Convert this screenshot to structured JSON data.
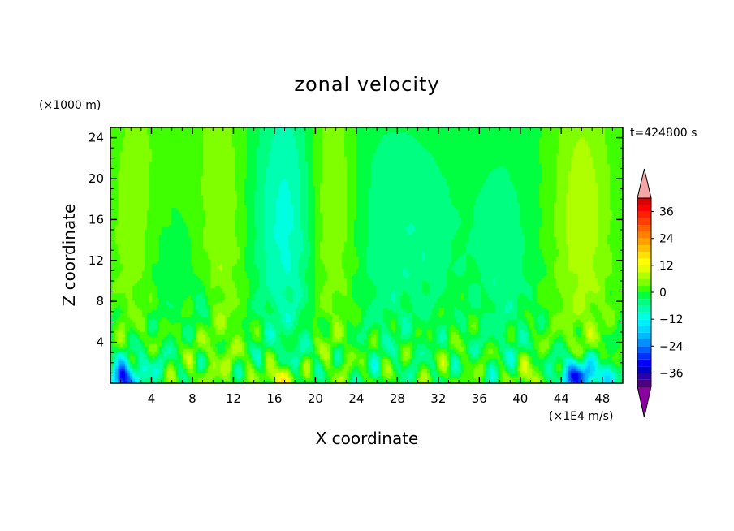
{
  "chart_data": {
    "type": "heatmap",
    "title": "zonal velocity",
    "xlabel": "X coordinate",
    "ylabel": "Z coordinate",
    "x_unit_label": "(×1E4 m/s)",
    "y_unit_label": "(×1000 m)",
    "time_label": "t=424800 s",
    "xlim": [
      0,
      50
    ],
    "ylim": [
      0,
      25
    ],
    "x_ticks": [
      4,
      8,
      12,
      16,
      20,
      24,
      28,
      32,
      36,
      40,
      44,
      48
    ],
    "y_ticks": [
      4,
      8,
      12,
      16,
      20,
      24
    ],
    "x_tick_labels": [
      "4",
      "8",
      "12",
      "16",
      "20",
      "24",
      "28",
      "32",
      "36",
      "40",
      "44",
      "48"
    ],
    "y_tick_labels": [
      "4",
      "8",
      "12",
      "16",
      "20",
      "24"
    ],
    "colorbar": {
      "levels": [
        -42,
        -39,
        -36,
        -33,
        -30,
        -27,
        -24,
        -21,
        -18,
        -15,
        -12,
        -9,
        -6,
        -3,
        0,
        3,
        6,
        9,
        12,
        15,
        18,
        21,
        24,
        27,
        30,
        33,
        36,
        39,
        42
      ],
      "tick_values": [
        36,
        24,
        12,
        0,
        -12,
        -24,
        -36
      ],
      "tick_labels": [
        "36",
        "24",
        "12",
        "0",
        "−12",
        "−24",
        "−36"
      ],
      "colors": [
        "#4b0082",
        "#2a00a8",
        "#0000c8",
        "#0000ff",
        "#0030ff",
        "#0060ff",
        "#0090ff",
        "#00b8ff",
        "#00d8ff",
        "#00f0ff",
        "#00ffe0",
        "#00ffb0",
        "#00ff80",
        "#00ff40",
        "#40ff00",
        "#80ff00",
        "#b0ff00",
        "#e0ff00",
        "#ffff00",
        "#ffe000",
        "#ffc000",
        "#ffa000",
        "#ff8000",
        "#ff6000",
        "#ff4000",
        "#ff2000",
        "#ff0000",
        "#e00000"
      ],
      "over_color": "#f4a6a6",
      "under_color": "#8b00a0"
    },
    "pattern": "vertical columns of weak positive/negative zonal velocity aloft; small-scale alternating eddies below ~8 km; strongest negative near surface at x~1 and x~45, strongest positive near surface at x~16.5"
  }
}
